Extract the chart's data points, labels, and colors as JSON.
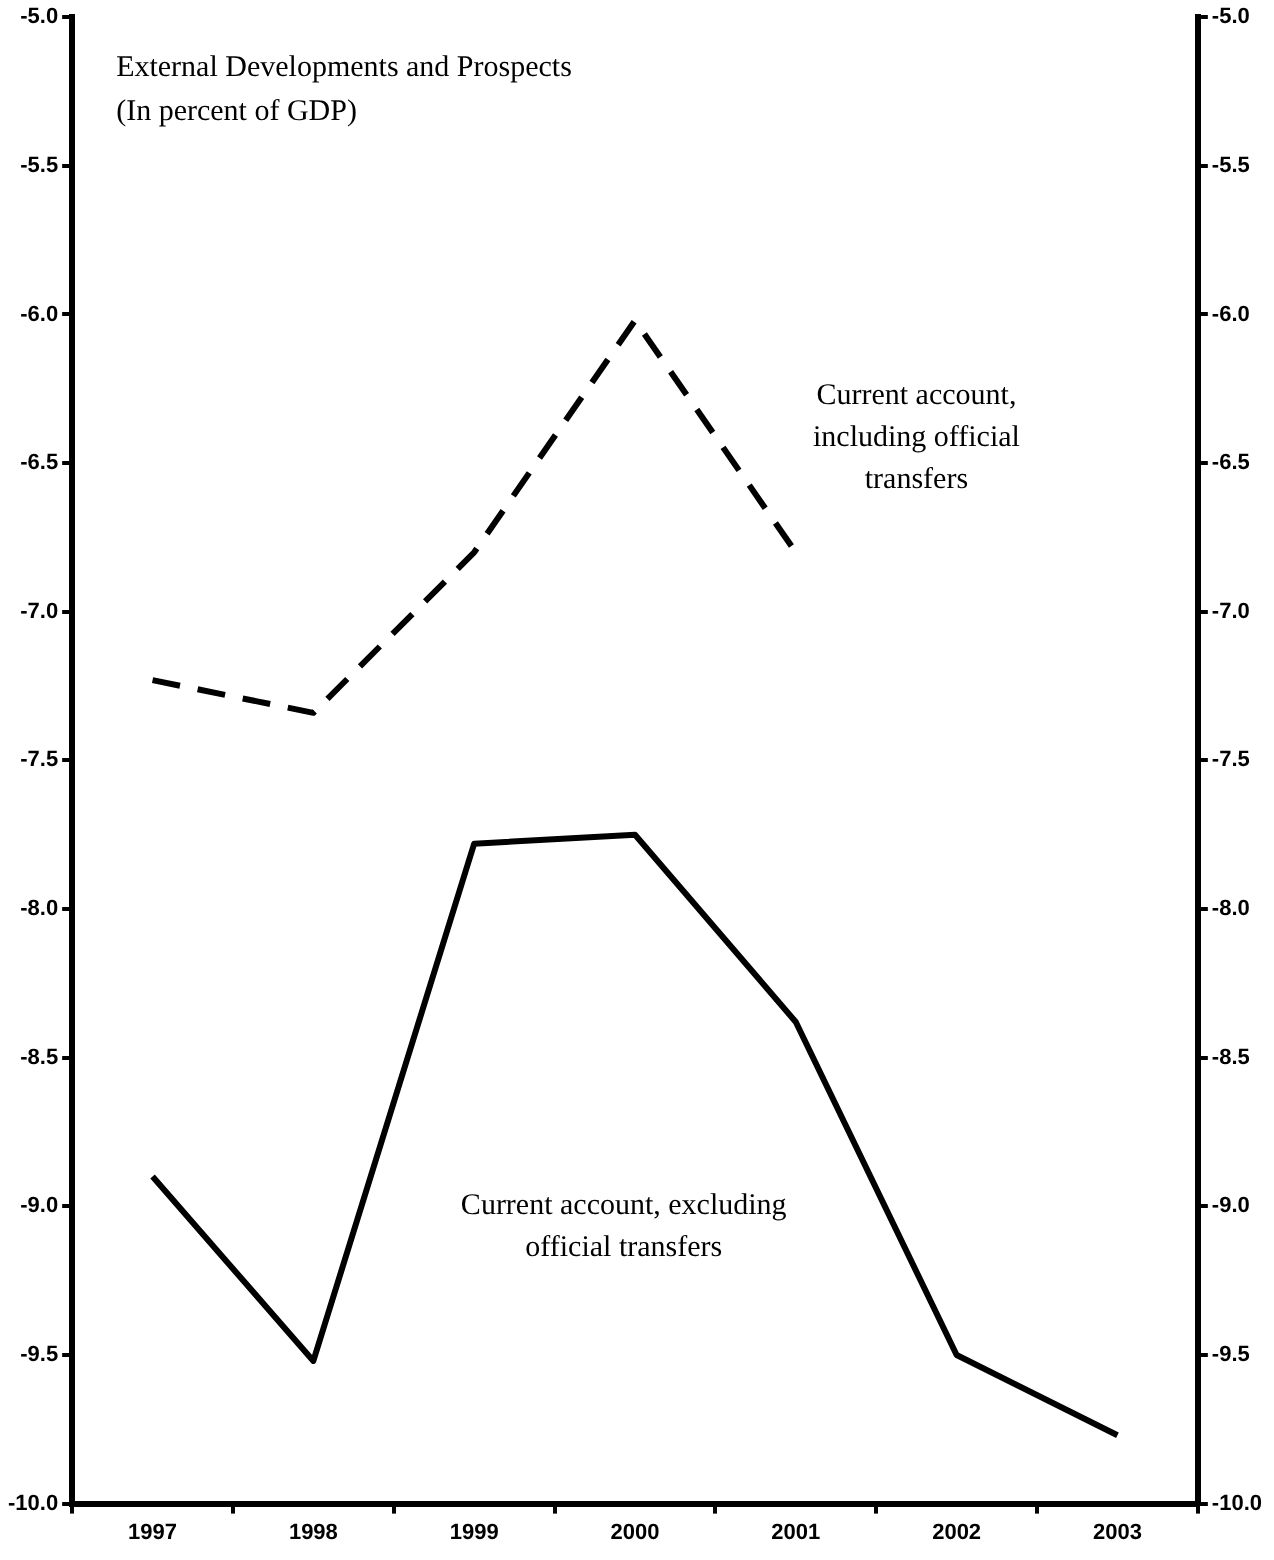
{
  "chart_data": {
    "type": "line",
    "title": "External Developments and Prospects",
    "subtitle": "(In percent of GDP)",
    "categories": [
      "1997",
      "1998",
      "1999",
      "2000",
      "2001",
      "2002",
      "2003"
    ],
    "series": [
      {
        "name": "Current account, including official transfers",
        "color": "#000000",
        "line_style": "dashed",
        "values": [
          -7.23,
          -7.34,
          -6.8,
          -6.02,
          -6.8,
          null,
          null
        ]
      },
      {
        "name": "Current account, excluding official transfers",
        "color": "#000000",
        "line_style": "solid",
        "values": [
          -8.9,
          -9.52,
          -7.78,
          -7.75,
          -8.38,
          -9.5,
          -9.77
        ]
      }
    ],
    "ylim": [
      -10,
      -5
    ],
    "yticks": [
      {
        "value": -10,
        "label": "-10.0"
      },
      {
        "value": -9.5,
        "label": "-9.5"
      },
      {
        "value": -9,
        "label": "-9.0"
      },
      {
        "value": -8.5,
        "label": "-8.5"
      },
      {
        "value": -8,
        "label": "-8.0"
      },
      {
        "value": -7.5,
        "label": "-7.5"
      },
      {
        "value": -7,
        "label": "-7.0"
      },
      {
        "value": -6.5,
        "label": "-6.5"
      },
      {
        "value": -6,
        "label": "-6.0"
      },
      {
        "value": -5.5,
        "label": "-5.5"
      },
      {
        "value": -5,
        "label": "-5.0"
      }
    ],
    "y2lim": [
      -10,
      -5
    ],
    "y2ticks": [
      {
        "value": -10,
        "label": "-10.0"
      },
      {
        "value": -9.5,
        "label": "-9.5"
      },
      {
        "value": -9,
        "label": "-9.0"
      },
      {
        "value": -8.5,
        "label": "-8.5"
      },
      {
        "value": -8,
        "label": "-8.0"
      },
      {
        "value": -7.5,
        "label": "-7.5"
      },
      {
        "value": -7,
        "label": "-7.0"
      },
      {
        "value": -6.5,
        "label": "-6.5"
      },
      {
        "value": -6,
        "label": "-6.0"
      },
      {
        "value": -5.5,
        "label": "-5.5"
      },
      {
        "value": -5,
        "label": "-5.0"
      }
    ],
    "grid": false,
    "legend": false,
    "marker": "none"
  }
}
